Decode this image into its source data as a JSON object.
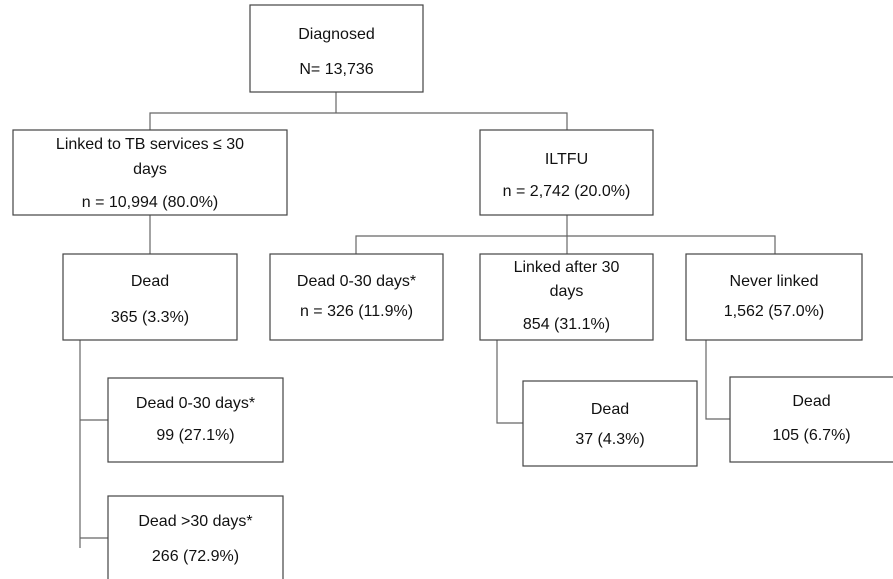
{
  "nodes": [
    {
      "lines": [
        "Diagnosed",
        "N= 13,736"
      ]
    },
    {
      "lines": [
        "Linked to TB services ≤ 30",
        "days",
        "n = 10,994 (80.0%)"
      ]
    },
    {
      "lines": [
        "ILTFU",
        "n = 2,742 (20.0%)"
      ]
    },
    {
      "lines": [
        "Dead",
        "365 (3.3%)"
      ]
    },
    {
      "lines": [
        "Dead 0-30 days*",
        "n = 326 (11.9%)"
      ]
    },
    {
      "lines": [
        "Linked after 30",
        "days",
        "854 (31.1%)"
      ]
    },
    {
      "lines": [
        "Never linked",
        "1,562 (57.0%)"
      ]
    },
    {
      "lines": [
        "Dead 0-30 days*",
        "99 (27.1%)"
      ]
    },
    {
      "lines": [
        "Dead >30 days*",
        "266 (72.9%)"
      ]
    },
    {
      "lines": [
        "Dead",
        "37 (4.3%)"
      ]
    },
    {
      "lines": [
        "Dead",
        "105 (6.7%)"
      ]
    }
  ]
}
